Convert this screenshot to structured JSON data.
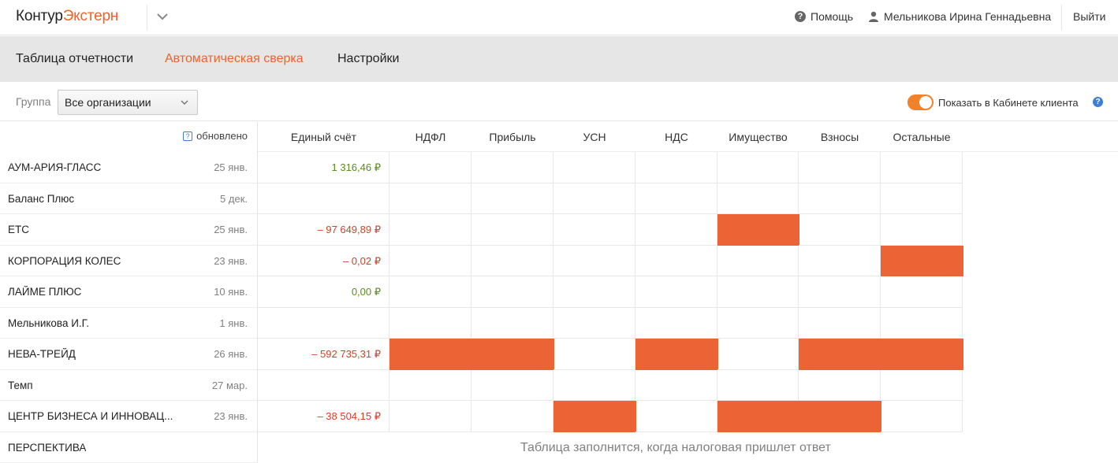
{
  "header": {
    "logo_part1": "Контур",
    "logo_part2": "Экстерн",
    "help": "Помощь",
    "user": "Мельникова Ирина Геннадьевна",
    "logout": "Выйти"
  },
  "nav": {
    "tabs": [
      "Таблица отчетности",
      "Автоматическая сверка",
      "Настройки"
    ]
  },
  "filter": {
    "group_label": "Группа",
    "group_value": "Все организации",
    "toggle_label": "Показать в Кабинете клиента"
  },
  "table": {
    "updated_label": "обновлено",
    "columns": [
      "Единый счёт",
      "НДФЛ",
      "Прибыль",
      "УСН",
      "НДС",
      "Имущество",
      "Взносы",
      "Остальные"
    ],
    "rows": [
      {
        "org": "АУМ-АРИЯ-ГЛАСС",
        "date": "25 янв.",
        "amount": "1 316,46 ₽",
        "sign": "pos",
        "flags": [
          0,
          0,
          0,
          0,
          0,
          0,
          0
        ]
      },
      {
        "org": "Баланс Плюс",
        "date": "5 дек.",
        "amount": "",
        "sign": "",
        "flags": [
          0,
          0,
          0,
          0,
          0,
          0,
          0
        ]
      },
      {
        "org": "ЕТС",
        "date": "25 янв.",
        "amount": "– 97 649,89 ₽",
        "sign": "neg",
        "flags": [
          0,
          0,
          0,
          0,
          1,
          0,
          0
        ]
      },
      {
        "org": "КОРПОРАЦИЯ КОЛЕС",
        "date": "23 янв.",
        "amount": "– 0,02 ₽",
        "sign": "neg",
        "flags": [
          0,
          0,
          0,
          0,
          0,
          0,
          1
        ]
      },
      {
        "org": "ЛАЙМЕ ПЛЮС",
        "date": "10 янв.",
        "amount": "0,00 ₽",
        "sign": "pos",
        "flags": [
          0,
          0,
          0,
          0,
          0,
          0,
          0
        ]
      },
      {
        "org": "Мельникова И.Г.",
        "date": "1 янв.",
        "amount": "",
        "sign": "",
        "flags": [
          0,
          0,
          0,
          0,
          0,
          0,
          0
        ]
      },
      {
        "org": "НЕВА-ТРЕЙД",
        "date": "26 янв.",
        "amount": "– 592 735,31 ₽",
        "sign": "neg",
        "flags": [
          1,
          1,
          0,
          1,
          0,
          1,
          1
        ]
      },
      {
        "org": "Темп",
        "date": "27 мар.",
        "amount": "",
        "sign": "",
        "flags": [
          0,
          0,
          0,
          0,
          0,
          0,
          0
        ]
      },
      {
        "org": "ЦЕНТР БИЗНЕСА И ИННОВАЦ...",
        "date": "23 янв.",
        "amount": "– 38 504,15 ₽",
        "sign": "neg",
        "flags": [
          0,
          0,
          1,
          0,
          1,
          1,
          0
        ]
      },
      {
        "org": "ПЕРСПЕКТИВА",
        "date": "",
        "amount": "",
        "sign": "",
        "flags": null
      }
    ],
    "pending_note": "Таблица заполнится, когда налоговая пришлет ответ"
  },
  "colors": {
    "accent": "#f0622c",
    "alert_cell": "#ec6436",
    "positive": "#5b8a1e",
    "negative": "#d2402a"
  }
}
